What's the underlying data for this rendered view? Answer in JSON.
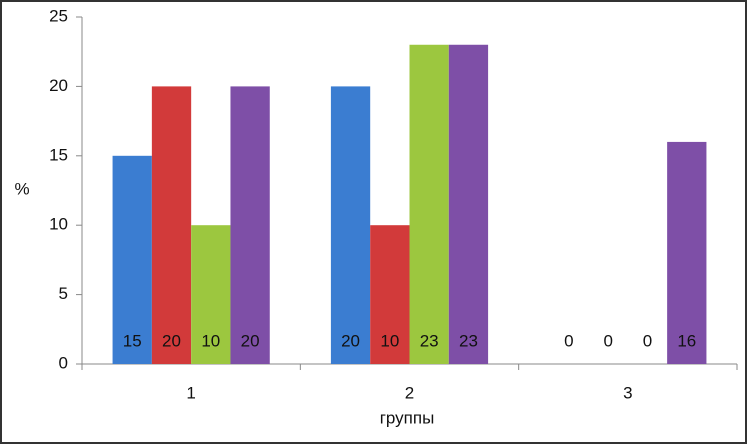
{
  "chart_data": {
    "type": "bar",
    "categories": [
      "1",
      "2",
      "3"
    ],
    "series": [
      {
        "color": "#3b7dd1",
        "values": [
          15,
          20,
          0
        ]
      },
      {
        "color": "#d23a3a",
        "values": [
          20,
          10,
          0
        ]
      },
      {
        "color": "#9cc73f",
        "values": [
          10,
          23,
          0
        ]
      },
      {
        "color": "#7e4fa7",
        "values": [
          20,
          23,
          16
        ]
      }
    ],
    "ylim": [
      0,
      25
    ],
    "yticks": [
      0,
      5,
      10,
      15,
      20,
      25
    ],
    "y_label": "%",
    "x_label": "группы",
    "grid": false
  }
}
